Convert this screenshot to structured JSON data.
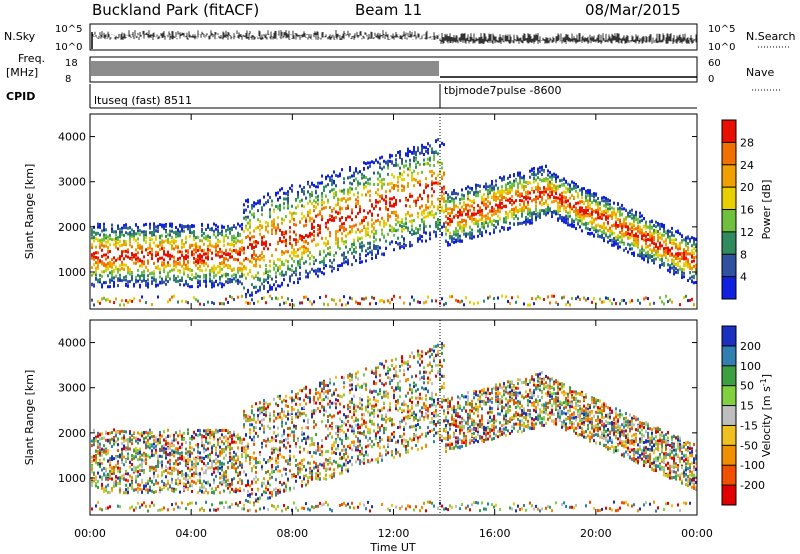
{
  "header": {
    "site": "Buckland Park (fitACF)",
    "beam": "Beam 11",
    "date": "08/Mar/2015"
  },
  "param_panels": {
    "left_labels": {
      "nsky": "N.Sky",
      "freq": "Freq.",
      "freq_unit": "[MHz]",
      "cpid": "CPID"
    },
    "right_labels": {
      "nsearch": "N.Search",
      "nave": "Nave"
    },
    "noise_ticks_left": [
      "10^5",
      "10^0"
    ],
    "noise_ticks_right": [
      "10^5",
      "10^0"
    ],
    "freq_ticks": [
      "18",
      "8"
    ],
    "nave_ticks": [
      "60",
      "0"
    ],
    "cpid_modes": [
      {
        "label": "ltuseq (fast) 8511",
        "start_hour": 0,
        "end_hour": 14
      },
      {
        "label": "tbjmode7pulse -8600",
        "start_hour": 14,
        "end_hour": 24
      }
    ]
  },
  "chart_data": [
    {
      "type": "heatmap",
      "name": "power",
      "ylabel": "Slant Range [km]",
      "xlabel": "Time UT",
      "x_ticks": [
        "00:00",
        "04:00",
        "08:00",
        "12:00",
        "16:00",
        "20:00",
        "00:00"
      ],
      "xlim": [
        0,
        24
      ],
      "y_ticks": [
        1000,
        2000,
        3000,
        4000
      ],
      "ylim": [
        180,
        4500
      ],
      "colorbar": {
        "label": "Power [dB]",
        "ticks": [
          "4",
          "8",
          "12",
          "16",
          "20",
          "24",
          "28"
        ],
        "colors": [
          "#1020e0",
          "#3050a0",
          "#308a60",
          "#70c040",
          "#e8d000",
          "#f0a000",
          "#f07000",
          "#e81000"
        ]
      }
    },
    {
      "type": "heatmap",
      "name": "velocity",
      "ylabel": "Slant Range [km]",
      "xlabel": "Time UT",
      "x_ticks": [
        "00:00",
        "04:00",
        "08:00",
        "12:00",
        "16:00",
        "20:00",
        "00:00"
      ],
      "xlim": [
        0,
        24
      ],
      "y_ticks": [
        1000,
        2000,
        3000,
        4000
      ],
      "ylim": [
        180,
        4500
      ],
      "colorbar": {
        "label": "Velocity [m s",
        "label_sup": "-1",
        "label_end": "]",
        "ticks": [
          "200",
          "100",
          "50",
          "15",
          "-15",
          "-50",
          "-100",
          "-200"
        ],
        "colors": [
          "#1a30c0",
          "#2f7fb0",
          "#3da040",
          "#80d040",
          "#bebebe",
          "#f0c020",
          "#f09000",
          "#f05000",
          "#e00000"
        ]
      }
    }
  ],
  "xlabel": "Time UT"
}
